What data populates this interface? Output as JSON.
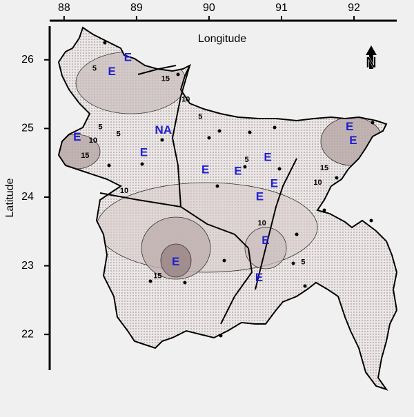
{
  "axes": {
    "x_label": "Longitude",
    "y_label": "Latitude",
    "xlim": [
      87.83,
      92.59
    ],
    "ylim": [
      21.5,
      26.47
    ],
    "xticks": [
      88,
      89,
      90,
      91,
      92
    ],
    "yticks": [
      22,
      23,
      24,
      25,
      26
    ]
  },
  "north_label": "N",
  "markers": [
    {
      "label": "E",
      "lon": 88.88,
      "lat": 26.03
    },
    {
      "label": "E",
      "lon": 88.66,
      "lat": 25.82
    },
    {
      "label": "E",
      "lon": 88.18,
      "lat": 24.87
    },
    {
      "label": "NA",
      "lon": 89.37,
      "lat": 24.97
    },
    {
      "label": "E",
      "lon": 89.1,
      "lat": 24.64
    },
    {
      "label": "E",
      "lon": 89.95,
      "lat": 24.39
    },
    {
      "label": "E",
      "lon": 90.4,
      "lat": 24.37
    },
    {
      "label": "E",
      "lon": 90.81,
      "lat": 24.57
    },
    {
      "label": "E",
      "lon": 90.9,
      "lat": 24.19
    },
    {
      "label": "E",
      "lon": 90.7,
      "lat": 24.0
    },
    {
      "label": "E",
      "lon": 90.78,
      "lat": 23.36
    },
    {
      "label": "E",
      "lon": 89.54,
      "lat": 23.05
    },
    {
      "label": "E",
      "lon": 90.69,
      "lat": 22.82
    },
    {
      "label": "E",
      "lon": 91.94,
      "lat": 25.02
    },
    {
      "label": "E",
      "lon": 91.99,
      "lat": 24.82
    }
  ],
  "contour_labels": [
    {
      "value": 5,
      "lon": 88.42,
      "lat": 25.87
    },
    {
      "value": 15,
      "lon": 89.4,
      "lat": 25.72
    },
    {
      "value": 10,
      "lon": 89.68,
      "lat": 25.42
    },
    {
      "value": 5,
      "lon": 89.88,
      "lat": 25.17
    },
    {
      "value": 5,
      "lon": 88.5,
      "lat": 25.02
    },
    {
      "value": 5,
      "lon": 88.75,
      "lat": 24.92
    },
    {
      "value": 10,
      "lon": 88.4,
      "lat": 24.82
    },
    {
      "value": 15,
      "lon": 88.29,
      "lat": 24.6
    },
    {
      "value": 10,
      "lon": 88.83,
      "lat": 24.09
    },
    {
      "value": 5,
      "lon": 90.52,
      "lat": 24.54
    },
    {
      "value": 10,
      "lon": 90.73,
      "lat": 23.62
    },
    {
      "value": 15,
      "lon": 89.29,
      "lat": 22.85
    },
    {
      "value": 5,
      "lon": 91.3,
      "lat": 23.05
    },
    {
      "value": 15,
      "lon": 91.59,
      "lat": 24.42
    },
    {
      "value": 10,
      "lon": 91.5,
      "lat": 24.21
    }
  ]
}
